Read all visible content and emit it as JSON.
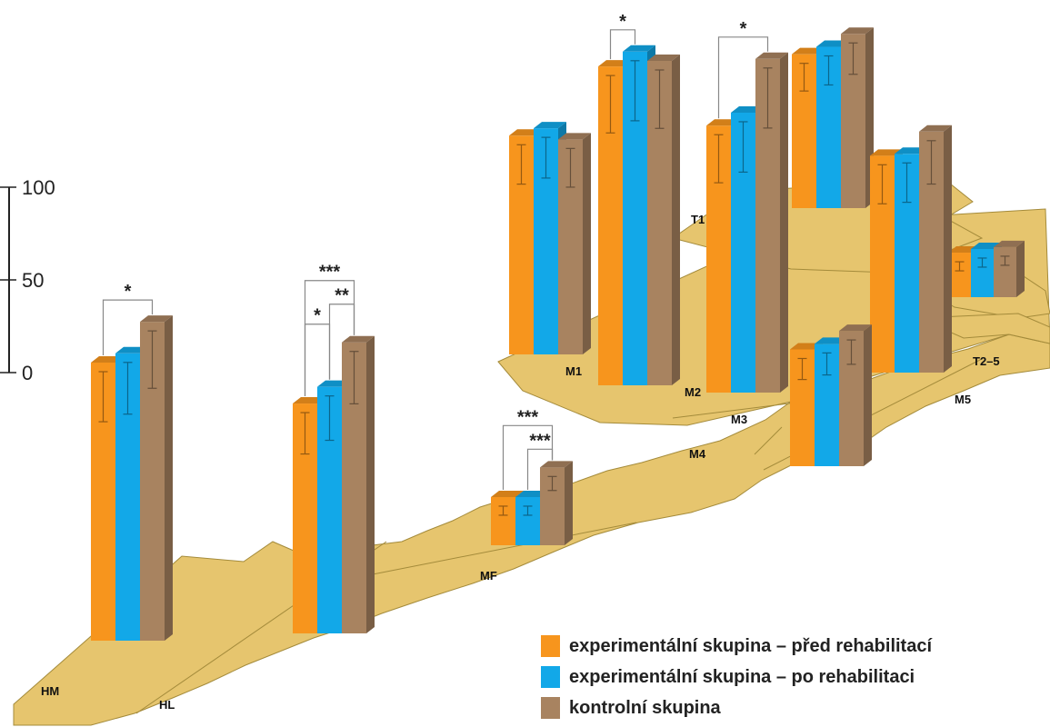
{
  "colors": {
    "pre": "#f7951d",
    "post": "#12a8e8",
    "control": "#a88360",
    "foot": "#e6c56e",
    "foot_stroke": "#a48b3b",
    "axis": "#222222"
  },
  "legend": [
    {
      "key": "pre",
      "label": "experimentální skupina – před rehabilitací"
    },
    {
      "key": "post",
      "label": "experimentální skupina – po rehabilitaci"
    },
    {
      "key": "control",
      "label": "kontrolní skupina"
    }
  ],
  "chart_data": {
    "type": "bar",
    "style": "3D bars placed on a plantar foot outline",
    "y_axis_ticks": [
      0,
      50,
      100
    ],
    "ylim": [
      0,
      100
    ],
    "series": [
      {
        "key": "pre",
        "name": "experimentální skupina – před rehabilitací"
      },
      {
        "key": "post",
        "name": "experimentální skupina – po rehabilitaci"
      },
      {
        "key": "control",
        "name": "kontrolní skupina"
      }
    ],
    "regions": [
      {
        "label": "HM",
        "values": [
          150,
          155,
          172
        ],
        "significance": [
          {
            "between": [
              "pre",
              "control"
            ],
            "stars": "*"
          }
        ]
      },
      {
        "label": "HL",
        "values": [
          124,
          133,
          157
        ],
        "significance": [
          {
            "between": [
              "pre",
              "control"
            ],
            "stars": "***"
          },
          {
            "between": [
              "post",
              "control"
            ],
            "stars": "**"
          },
          {
            "between": [
              "pre",
              "post"
            ],
            "stars": "*"
          }
        ]
      },
      {
        "label": "MF",
        "values": [
          26,
          26,
          42
        ],
        "significance": [
          {
            "between": [
              "pre",
              "control"
            ],
            "stars": "***"
          },
          {
            "between": [
              "post",
              "control"
            ],
            "stars": "***"
          }
        ]
      },
      {
        "label": "M1",
        "values": [
          118,
          122,
          116
        ],
        "significance": []
      },
      {
        "label": "M2",
        "values": [
          172,
          180,
          175
        ],
        "significance": [
          {
            "between": [
              "pre",
              "post"
            ],
            "stars": "*"
          }
        ]
      },
      {
        "label": "M3",
        "values": [
          144,
          151,
          180
        ],
        "significance": [
          {
            "between": [
              "pre",
              "control"
            ],
            "stars": "*"
          }
        ]
      },
      {
        "label": "M4",
        "values": [
          63,
          66,
          73
        ],
        "significance": []
      },
      {
        "label": "M5",
        "values": [
          117,
          118,
          130
        ],
        "significance": []
      },
      {
        "label": "T1",
        "values": [
          83,
          87,
          94
        ],
        "significance": []
      },
      {
        "label": "T2–5",
        "values": [
          24,
          26,
          27
        ],
        "significance": []
      }
    ]
  }
}
